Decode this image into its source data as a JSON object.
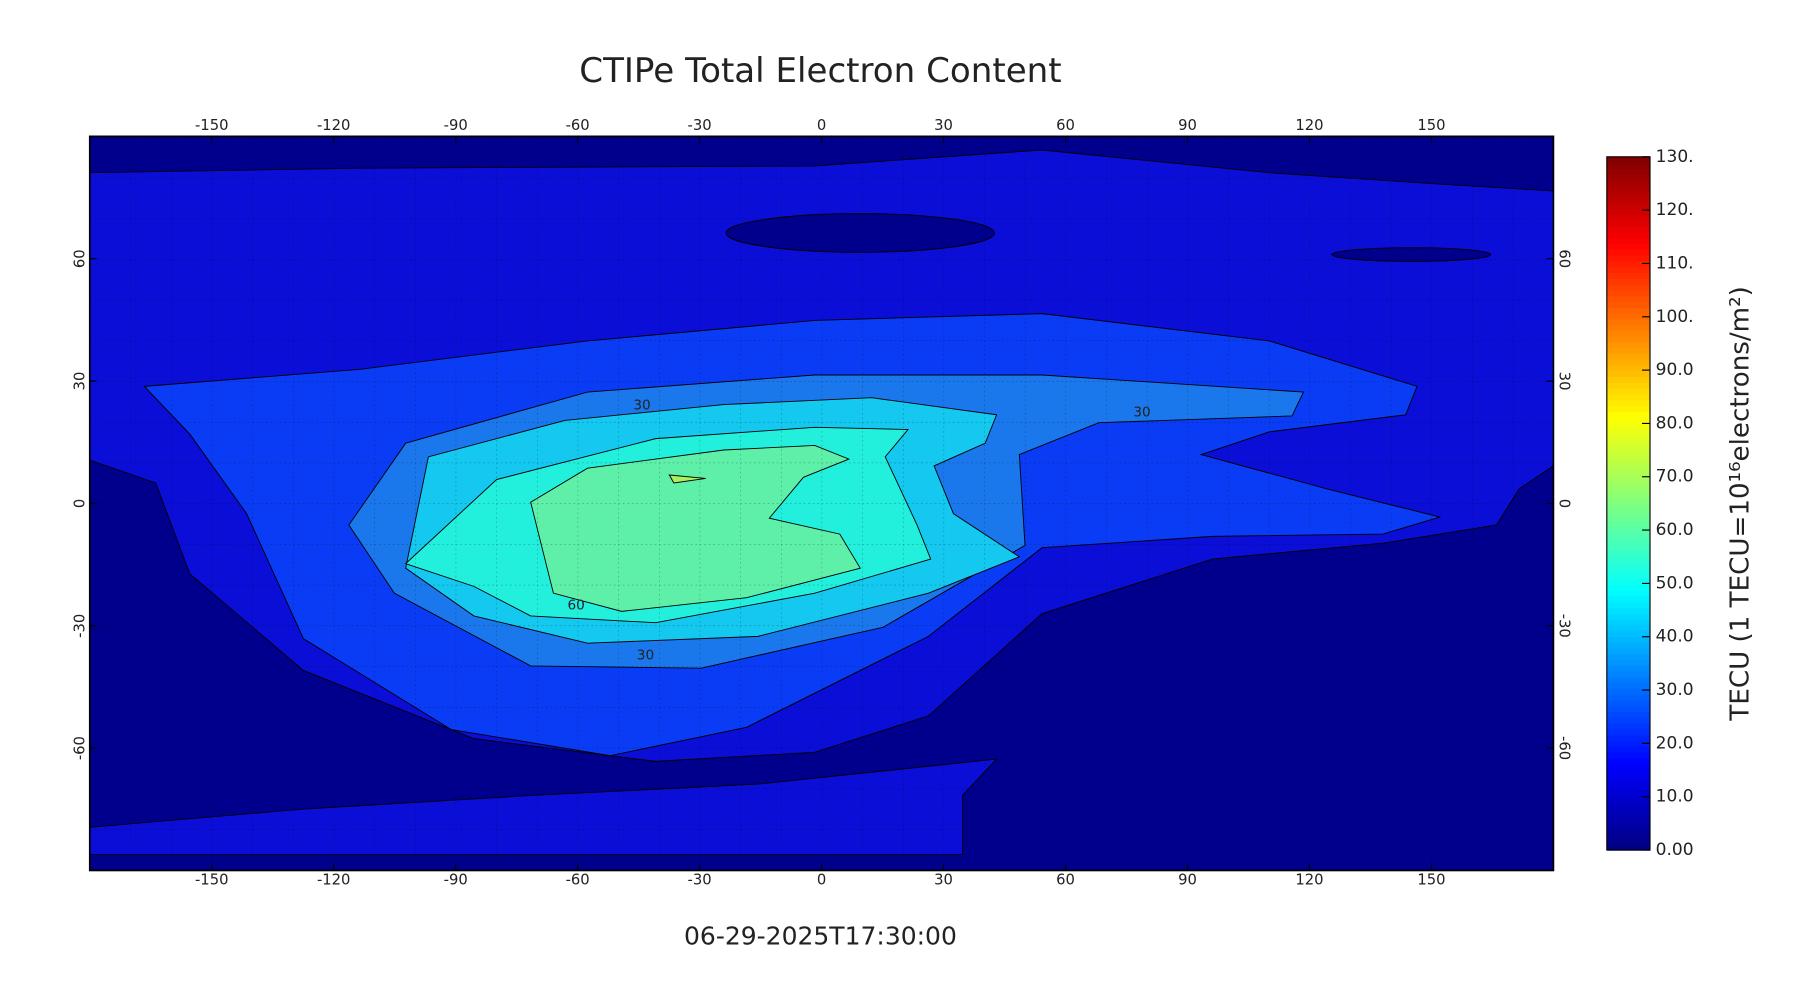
{
  "title": "CTIPe Total Electron Content",
  "timestamp": "06-29-2025T17:30:00",
  "map": {
    "xlim": [
      -180,
      180
    ],
    "ylim": [
      -90,
      90
    ],
    "xticks": [
      -150,
      -120,
      -90,
      -60,
      -30,
      0,
      30,
      60,
      90,
      120,
      150
    ],
    "yticks": [
      -60,
      -30,
      0,
      30,
      60
    ],
    "bands": [
      {
        "level": 0,
        "color": "#00008c"
      },
      {
        "level": 10,
        "color": "#0a0ed6"
      },
      {
        "level": 20,
        "color": "#0a3cf5"
      },
      {
        "level": 30,
        "color": "#1a78ec"
      },
      {
        "level": 40,
        "color": "#14c8f0"
      },
      {
        "level": 50,
        "color": "#22f0dc"
      },
      {
        "level": 60,
        "color": "#5ef0a8"
      },
      {
        "level": 70,
        "color": "#a8f060"
      }
    ],
    "contour_labels": [
      30,
      30,
      60,
      30
    ]
  },
  "colorbar": {
    "title": "TECU (1 TECU=10¹⁶electrons/m²)",
    "colormap": "jet",
    "lim": [
      0,
      130
    ],
    "ticks": [
      {
        "value": 0,
        "label": "0.00"
      },
      {
        "value": 10,
        "label": "10.0"
      },
      {
        "value": 20,
        "label": "20.0"
      },
      {
        "value": 30,
        "label": "30.0"
      },
      {
        "value": 40,
        "label": "40.0"
      },
      {
        "value": 50,
        "label": "50.0"
      },
      {
        "value": 60,
        "label": "60.0"
      },
      {
        "value": 70,
        "label": "70.0"
      },
      {
        "value": 80,
        "label": "80.0"
      },
      {
        "value": 90,
        "label": "90.0"
      },
      {
        "value": 100,
        "label": "100."
      },
      {
        "value": 110,
        "label": "110."
      },
      {
        "value": 120,
        "label": "120."
      },
      {
        "value": 130,
        "label": "130."
      }
    ]
  }
}
